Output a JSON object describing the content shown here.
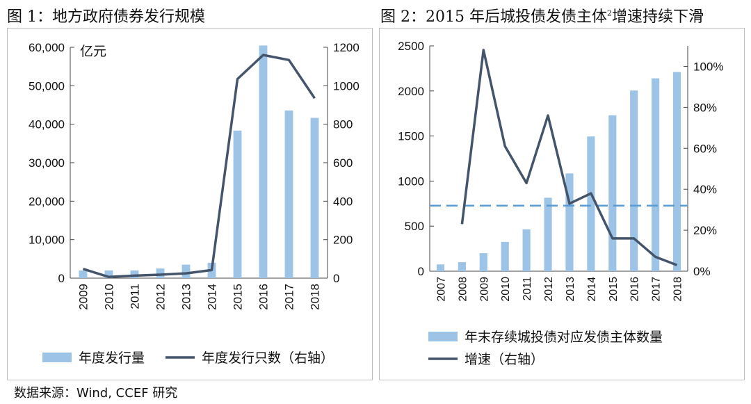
{
  "titles": {
    "chart1": "图 1：地方政府债券发行规模",
    "chart2_main": "图 2：2015 年后城投债发债主体",
    "chart2_sup": "2",
    "chart2_tail": "增速持续下滑"
  },
  "source": "数据来源：Wind, CCEF 研究",
  "colors": {
    "bar": "#9dc3e6",
    "line": "#44546a",
    "ref_line": "#5b9bd5"
  },
  "chart_data": [
    {
      "type": "bar",
      "title": "图 1：地方政府债券发行规模",
      "unit_label": "亿元",
      "categories": [
        "2009",
        "2010",
        "2011",
        "2012",
        "2013",
        "2014",
        "2015",
        "2016",
        "2017",
        "2018"
      ],
      "y_left": {
        "min": 0,
        "max": 60000,
        "ticks": [
          "0",
          "10,000",
          "20,000",
          "30,000",
          "40,000",
          "50,000",
          "60,000"
        ]
      },
      "y_right": {
        "min": 0,
        "max": 1200,
        "ticks": [
          "0",
          "200",
          "400",
          "600",
          "800",
          "1000",
          "1200"
        ]
      },
      "series": [
        {
          "name": "年度发行量",
          "type": "bar",
          "axis": "left",
          "values": [
            2000,
            2000,
            2000,
            2500,
            3500,
            4000,
            38350,
            60458,
            43580,
            41652
          ]
        },
        {
          "name": "年度发行只数（右轴）",
          "type": "line",
          "axis": "right",
          "values": [
            48,
            6,
            13,
            18,
            25,
            42,
            1035,
            1160,
            1134,
            935
          ]
        }
      ],
      "legend": [
        "年度发行量",
        "年度发行只数（右轴）"
      ],
      "legend_position": "bottom",
      "grid": false
    },
    {
      "type": "bar",
      "title": "图 2：2015 年后城投债发债主体2增速持续下滑",
      "categories": [
        "2007",
        "2008",
        "2009",
        "2010",
        "2011",
        "2012",
        "2013",
        "2014",
        "2015",
        "2016",
        "2017",
        "2018"
      ],
      "y_left": {
        "min": 0,
        "max": 2500,
        "ticks": [
          "0",
          "500",
          "1000",
          "1500",
          "2000",
          "2500"
        ]
      },
      "y_right": {
        "min": 0,
        "max": 1.1,
        "ticks": [
          "0%",
          "20%",
          "40%",
          "60%",
          "80%",
          "100%"
        ]
      },
      "series": [
        {
          "name": "年末存续城投债对应发债主体数量",
          "type": "bar",
          "axis": "left",
          "values": [
            75,
            100,
            200,
            325,
            465,
            815,
            1085,
            1495,
            1730,
            2005,
            2140,
            2210
          ]
        },
        {
          "name": "增速（右轴）",
          "type": "line",
          "axis": "right",
          "values": [
            null,
            0.23,
            1.08,
            0.61,
            0.43,
            0.76,
            0.33,
            0.38,
            0.16,
            0.16,
            0.07,
            0.03
          ]
        }
      ],
      "reference_line": {
        "axis": "right",
        "value": 0.32,
        "style": "dashed"
      },
      "legend": [
        "年末存续城投债对应发债主体数量",
        "增速（右轴）"
      ],
      "legend_position": "bottom",
      "grid": false
    }
  ]
}
